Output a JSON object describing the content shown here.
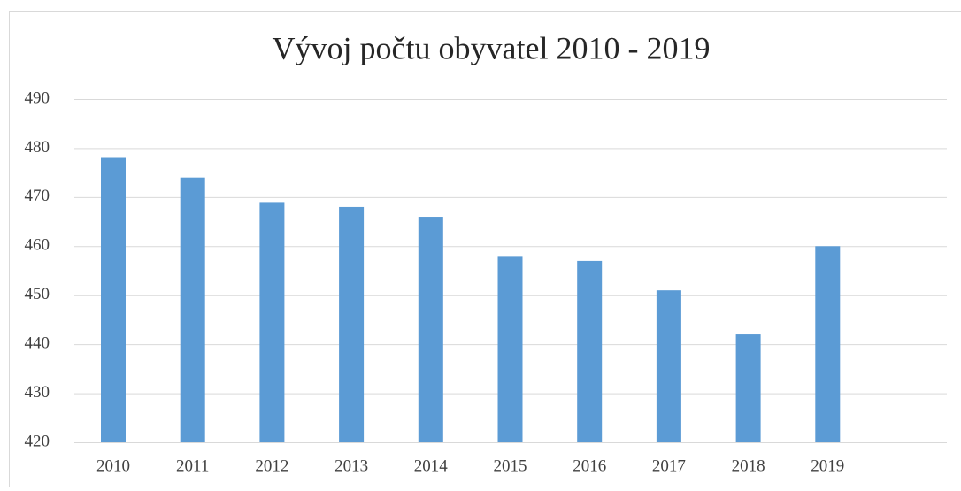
{
  "chart_data": {
    "type": "bar",
    "title": "Vývoj počtu obyvatel 2010 - 2019",
    "categories": [
      "2010",
      "2011",
      "2012",
      "2013",
      "2014",
      "2015",
      "2016",
      "2017",
      "2018",
      "2019"
    ],
    "values": [
      478,
      474,
      469,
      468,
      466,
      458,
      457,
      451,
      442,
      460
    ],
    "color": "#5b9bd5",
    "ylim": [
      420,
      490
    ],
    "yticks": [
      420,
      430,
      440,
      450,
      460,
      470,
      480,
      490
    ],
    "grid": true
  }
}
